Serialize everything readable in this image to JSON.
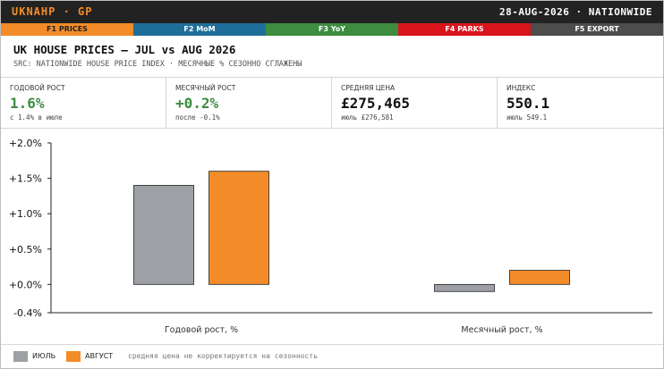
{
  "header": {
    "ticker": "UKNAHP · GP",
    "right": "28-AUG-2026 · NATIONWIDE"
  },
  "fkeys": [
    {
      "label": "F1 PRICES",
      "color": "#f28c28",
      "text_color": "#222222"
    },
    {
      "label": "F2 MoM",
      "color": "#1f6e99",
      "text_color": "#ffffff"
    },
    {
      "label": "F3 YoY",
      "color": "#3d8c40",
      "text_color": "#ffffff"
    },
    {
      "label": "F4 PARKS",
      "color": "#d9141b",
      "text_color": "#ffffff"
    },
    {
      "label": "F5 EXPORT",
      "color": "#4d4d4d",
      "text_color": "#ffffff"
    }
  ],
  "title": "UK HOUSE PRICES — JUL vs AUG 2026",
  "subtitle": "SRC: NATIONWIDE HOUSE PRICE INDEX · МЕСЯЧНЫЕ % СЕЗОННО СГЛАЖЕНЫ",
  "stats": [
    {
      "label": "ГОДОВОЙ РОСТ",
      "value": "1.6%",
      "sub": "с 1.4% в июле",
      "color": "#3d8c40"
    },
    {
      "label": "МЕСЯЧНЫЙ РОСТ",
      "value": "+0.2%",
      "sub": "после -0.1%",
      "color": "#3d8c40"
    },
    {
      "label": "СРЕДНЯЯ ЦЕНА",
      "value": "£275,465",
      "sub": "июль £276,581",
      "color": "#111111"
    },
    {
      "label": "ИНДЕКС",
      "value": "550.1",
      "sub": "июль 549.1",
      "color": "#111111"
    }
  ],
  "chart_data": {
    "type": "bar",
    "categories": [
      "Годовой рост, %",
      "Месячный рост, %"
    ],
    "series": [
      {
        "name": "ИЮЛЬ",
        "values": [
          1.4,
          -0.1
        ],
        "color": "#9da1a6"
      },
      {
        "name": "АВГУСТ",
        "values": [
          1.6,
          0.2
        ],
        "color": "#f28c28"
      }
    ],
    "y_ticks": [
      2.0,
      1.5,
      1.0,
      0.5,
      0.0,
      -0.4
    ],
    "y_tick_labels": [
      "+2.0%",
      "+1.5%",
      "+1.0%",
      "+0.5%",
      "+0.0%",
      "-0.4%"
    ],
    "ylim": [
      -0.4,
      2.0
    ],
    "grid": false,
    "legend_position": "bottom-left"
  },
  "legend": {
    "items": [
      {
        "label": "ИЮЛЬ",
        "color": "#9da1a6"
      },
      {
        "label": "АВГУСТ",
        "color": "#f28c28"
      }
    ],
    "note": "средняя цена не корректируется на сезонность"
  }
}
